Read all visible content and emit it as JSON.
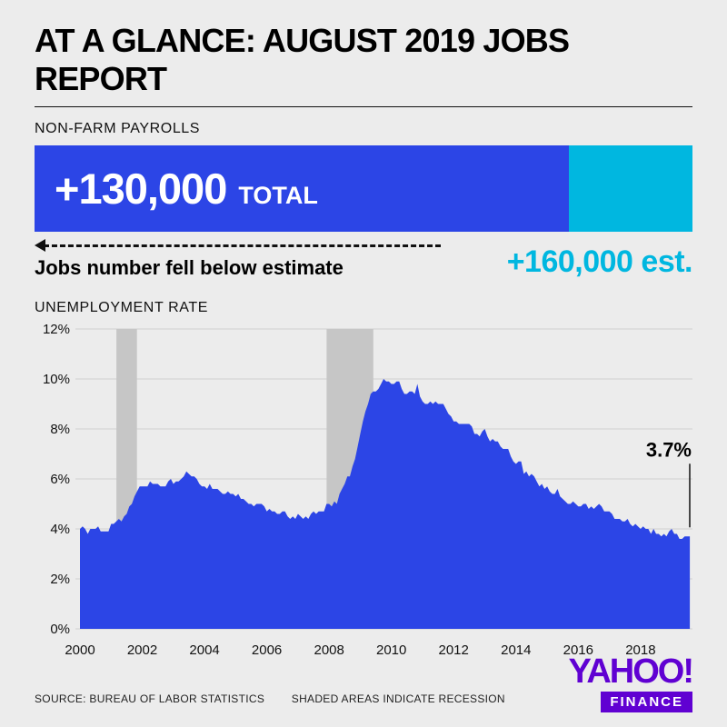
{
  "page": {
    "title": "AT A GLANCE: AUGUST 2019 JOBS REPORT",
    "background": "#ececec"
  },
  "payrolls": {
    "section_label": "NON-FARM PAYROLLS",
    "total_value": 130000,
    "total_value_label": "+130,000",
    "total_word": "TOTAL",
    "estimate_value": 160000,
    "estimate_label": "+160,000 est.",
    "caption": "Jobs number fell below estimate",
    "bar_color": "#2c45e6",
    "estimate_color": "#00b7e0"
  },
  "unemployment": {
    "section_label": "UNEMPLOYMENT RATE",
    "latest_label": "3.7%"
  },
  "footer": {
    "source": "SOURCE: BUREAU OF LABOR STATISTICS",
    "note": "SHADED AREAS INDICATE RECESSION",
    "brand_top": "YAHOO!",
    "brand_bottom": "FINANCE",
    "brand_color": "#6001d2"
  },
  "chart_data": {
    "type": "area",
    "title": "UNEMPLOYMENT RATE",
    "xlabel": "",
    "ylabel": "",
    "x_start": 2000.0,
    "x_end": 2019.667,
    "x_ticks": [
      2000,
      2002,
      2004,
      2006,
      2008,
      2010,
      2012,
      2014,
      2016,
      2018
    ],
    "y_ticks": [
      0,
      2,
      4,
      6,
      8,
      10,
      12
    ],
    "y_tick_suffix": "%",
    "ylim": [
      0,
      12
    ],
    "grid": true,
    "legend": false,
    "recessions": [
      [
        2001.17,
        2001.83
      ],
      [
        2007.92,
        2009.42
      ]
    ],
    "annotation": {
      "label": "3.7%",
      "x": 2019.583,
      "y": 3.7
    },
    "colors": {
      "area": "#2c45e6",
      "recession": "#c6c6c6",
      "grid": "#d0d0d0",
      "axis_text": "#111111"
    },
    "series": [
      {
        "name": "U.S. unemployment rate (%)",
        "start": "2000-01",
        "interval": "monthly",
        "values": [
          4.0,
          4.1,
          4.0,
          3.8,
          4.0,
          4.0,
          4.0,
          4.1,
          3.9,
          3.9,
          3.9,
          3.9,
          4.2,
          4.2,
          4.3,
          4.4,
          4.3,
          4.5,
          4.6,
          4.9,
          5.0,
          5.3,
          5.5,
          5.7,
          5.7,
          5.7,
          5.7,
          5.9,
          5.8,
          5.8,
          5.8,
          5.7,
          5.7,
          5.7,
          5.9,
          6.0,
          5.8,
          5.9,
          5.9,
          6.0,
          6.1,
          6.3,
          6.2,
          6.1,
          6.1,
          6.0,
          5.8,
          5.7,
          5.7,
          5.6,
          5.8,
          5.6,
          5.6,
          5.6,
          5.5,
          5.4,
          5.4,
          5.5,
          5.4,
          5.4,
          5.3,
          5.4,
          5.2,
          5.2,
          5.1,
          5.0,
          5.0,
          4.9,
          5.0,
          5.0,
          5.0,
          4.9,
          4.7,
          4.8,
          4.7,
          4.7,
          4.6,
          4.6,
          4.7,
          4.7,
          4.5,
          4.4,
          4.5,
          4.4,
          4.6,
          4.5,
          4.4,
          4.5,
          4.4,
          4.6,
          4.7,
          4.6,
          4.7,
          4.7,
          4.7,
          5.0,
          5.0,
          4.9,
          5.1,
          5.0,
          5.4,
          5.6,
          5.8,
          6.1,
          6.1,
          6.5,
          6.8,
          7.3,
          7.8,
          8.3,
          8.7,
          9.0,
          9.4,
          9.5,
          9.5,
          9.6,
          9.8,
          10.0,
          9.9,
          9.9,
          9.8,
          9.8,
          9.9,
          9.9,
          9.6,
          9.4,
          9.4,
          9.5,
          9.5,
          9.4,
          9.8,
          9.3,
          9.1,
          9.0,
          9.0,
          9.1,
          9.0,
          9.1,
          9.0,
          9.0,
          9.0,
          8.8,
          8.6,
          8.5,
          8.3,
          8.3,
          8.2,
          8.2,
          8.2,
          8.2,
          8.2,
          8.1,
          7.8,
          7.8,
          7.7,
          7.9,
          8.0,
          7.7,
          7.5,
          7.6,
          7.5,
          7.5,
          7.3,
          7.2,
          7.2,
          7.2,
          6.9,
          6.7,
          6.6,
          6.7,
          6.7,
          6.2,
          6.3,
          6.1,
          6.2,
          6.1,
          5.9,
          5.7,
          5.8,
          5.6,
          5.7,
          5.5,
          5.4,
          5.4,
          5.6,
          5.3,
          5.2,
          5.1,
          5.0,
          5.0,
          5.1,
          5.0,
          4.9,
          4.9,
          5.0,
          5.0,
          4.8,
          4.9,
          4.8,
          4.9,
          5.0,
          4.9,
          4.7,
          4.7,
          4.7,
          4.6,
          4.4,
          4.4,
          4.4,
          4.3,
          4.3,
          4.4,
          4.2,
          4.1,
          4.2,
          4.1,
          4.0,
          4.1,
          4.0,
          4.0,
          3.8,
          4.0,
          3.8,
          3.8,
          3.7,
          3.8,
          3.7,
          3.9,
          4.0,
          3.8,
          3.8,
          3.6,
          3.6,
          3.7,
          3.7,
          3.7
        ]
      }
    ]
  }
}
